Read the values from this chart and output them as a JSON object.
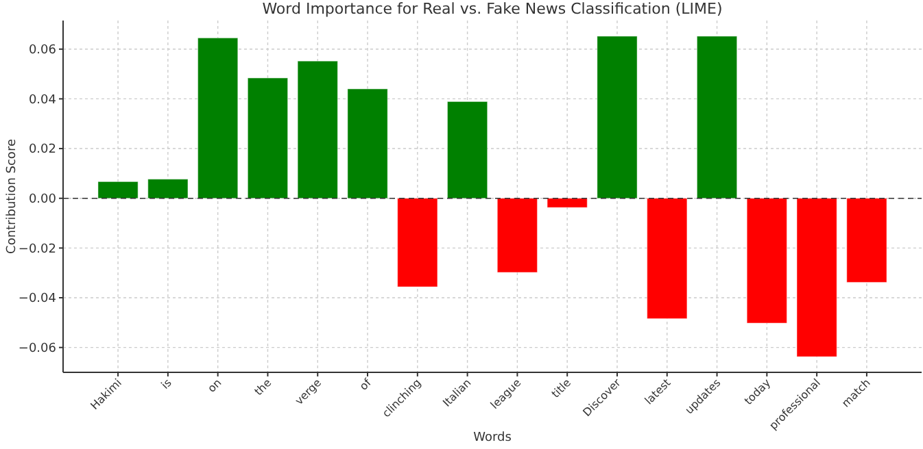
{
  "chart_data": {
    "type": "bar",
    "title": "Word Importance for Real vs. Fake News Classification (LIME)",
    "xlabel": "Words",
    "ylabel": "Contribution Score",
    "categories": [
      "Hakimi",
      "is",
      "on",
      "the",
      "verge",
      "of",
      "clinching",
      "Italian",
      "league",
      "title",
      "Discover",
      "latest",
      "updates",
      "today",
      "professional",
      "match"
    ],
    "values": [
      0.0067,
      0.0077,
      0.0645,
      0.0484,
      0.0552,
      0.044,
      -0.0356,
      0.0389,
      -0.0298,
      -0.0037,
      0.0652,
      -0.0484,
      0.0652,
      -0.0502,
      -0.0637,
      -0.0338
    ],
    "colors": [
      "#008000",
      "#008000",
      "#008000",
      "#008000",
      "#008000",
      "#008000",
      "#ff0000",
      "#008000",
      "#ff0000",
      "#ff0000",
      "#008000",
      "#ff0000",
      "#008000",
      "#ff0000",
      "#ff0000",
      "#ff0000"
    ],
    "ylim": [
      -0.07,
      0.0715
    ],
    "yticks": [
      {
        "value": -0.06,
        "label": "−0.06"
      },
      {
        "value": -0.04,
        "label": "−0.04"
      },
      {
        "value": -0.02,
        "label": "−0.02"
      },
      {
        "value": 0,
        "label": "0.00"
      },
      {
        "value": 0.02,
        "label": "0.02"
      },
      {
        "value": 0.04,
        "label": "0.04"
      },
      {
        "value": 0.06,
        "label": "0.06"
      }
    ],
    "grid": true,
    "ref_lines": [
      {
        "axis": "y",
        "value": 0,
        "color": "#333333",
        "line_style": "dashed"
      }
    ]
  }
}
